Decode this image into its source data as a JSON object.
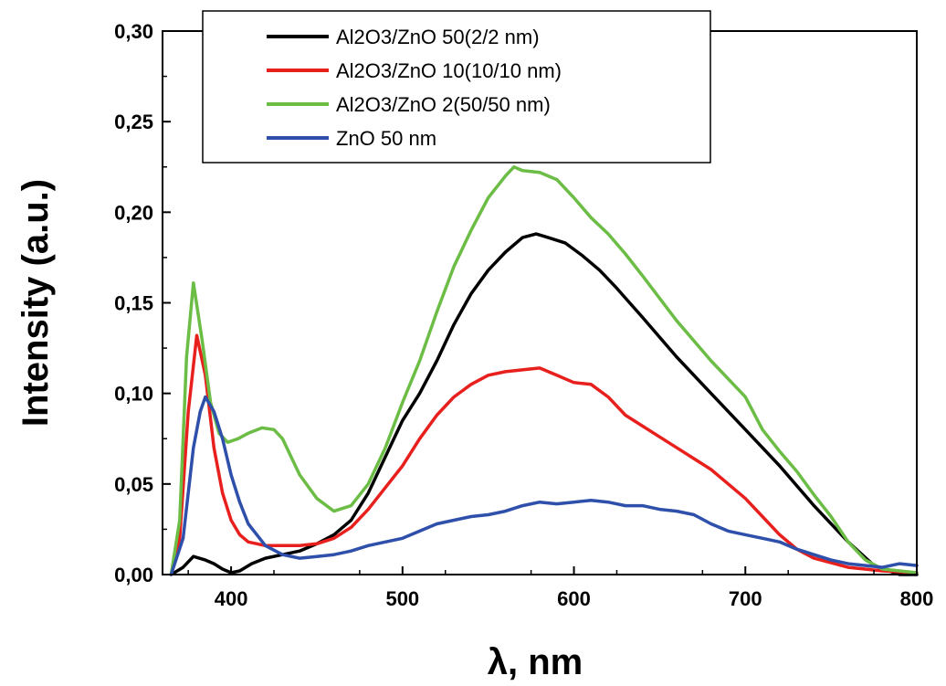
{
  "chart_data": {
    "type": "line",
    "title": "",
    "xlabel": "λ, nm",
    "ylabel": "Intensity (a.u.)",
    "xlim": [
      360,
      800
    ],
    "ylim": [
      0,
      0.3
    ],
    "x_ticks": [
      400,
      500,
      600,
      700,
      800
    ],
    "x_tick_labels": [
      "400",
      "500",
      "600",
      "700",
      "800"
    ],
    "y_ticks": [
      0,
      0.05,
      0.1,
      0.15,
      0.2,
      0.25,
      0.3
    ],
    "y_tick_labels": [
      "0,00",
      "0,05",
      "0,10",
      "0,15",
      "0,20",
      "0,25",
      "0,30"
    ],
    "grid": false,
    "legend_position": "top",
    "series": [
      {
        "name": "Al2O3/ZnO 50(2/2 nm)",
        "color": "#000000",
        "points": [
          [
            365,
            0.0
          ],
          [
            372,
            0.004
          ],
          [
            378,
            0.01
          ],
          [
            385,
            0.008
          ],
          [
            390,
            0.006
          ],
          [
            395,
            0.003
          ],
          [
            400,
            0.001
          ],
          [
            405,
            0.002
          ],
          [
            412,
            0.006
          ],
          [
            420,
            0.009
          ],
          [
            430,
            0.011
          ],
          [
            440,
            0.013
          ],
          [
            450,
            0.017
          ],
          [
            460,
            0.022
          ],
          [
            470,
            0.03
          ],
          [
            480,
            0.045
          ],
          [
            490,
            0.065
          ],
          [
            500,
            0.085
          ],
          [
            510,
            0.1
          ],
          [
            520,
            0.118
          ],
          [
            530,
            0.138
          ],
          [
            540,
            0.155
          ],
          [
            550,
            0.168
          ],
          [
            560,
            0.178
          ],
          [
            570,
            0.186
          ],
          [
            578,
            0.188
          ],
          [
            585,
            0.186
          ],
          [
            595,
            0.183
          ],
          [
            605,
            0.176
          ],
          [
            615,
            0.168
          ],
          [
            625,
            0.158
          ],
          [
            640,
            0.142
          ],
          [
            660,
            0.12
          ],
          [
            680,
            0.1
          ],
          [
            700,
            0.08
          ],
          [
            720,
            0.06
          ],
          [
            740,
            0.038
          ],
          [
            760,
            0.018
          ],
          [
            775,
            0.005
          ],
          [
            790,
            0.0
          ],
          [
            800,
            0.0
          ]
        ]
      },
      {
        "name": "Al2O3/ZnO 10(10/10 nm)",
        "color": "#e8201d",
        "points": [
          [
            365,
            0.0
          ],
          [
            370,
            0.02
          ],
          [
            375,
            0.09
          ],
          [
            380,
            0.132
          ],
          [
            385,
            0.11
          ],
          [
            390,
            0.07
          ],
          [
            395,
            0.045
          ],
          [
            400,
            0.03
          ],
          [
            405,
            0.022
          ],
          [
            410,
            0.018
          ],
          [
            420,
            0.016
          ],
          [
            430,
            0.016
          ],
          [
            440,
            0.016
          ],
          [
            450,
            0.017
          ],
          [
            460,
            0.02
          ],
          [
            470,
            0.026
          ],
          [
            480,
            0.036
          ],
          [
            490,
            0.048
          ],
          [
            500,
            0.06
          ],
          [
            510,
            0.075
          ],
          [
            520,
            0.088
          ],
          [
            530,
            0.098
          ],
          [
            540,
            0.105
          ],
          [
            550,
            0.11
          ],
          [
            560,
            0.112
          ],
          [
            570,
            0.113
          ],
          [
            580,
            0.114
          ],
          [
            590,
            0.11
          ],
          [
            600,
            0.106
          ],
          [
            610,
            0.105
          ],
          [
            620,
            0.098
          ],
          [
            630,
            0.088
          ],
          [
            640,
            0.082
          ],
          [
            650,
            0.076
          ],
          [
            660,
            0.07
          ],
          [
            670,
            0.064
          ],
          [
            680,
            0.058
          ],
          [
            690,
            0.05
          ],
          [
            700,
            0.042
          ],
          [
            710,
            0.032
          ],
          [
            720,
            0.022
          ],
          [
            730,
            0.014
          ],
          [
            740,
            0.009
          ],
          [
            760,
            0.004
          ],
          [
            780,
            0.002
          ],
          [
            800,
            0.001
          ]
        ]
      },
      {
        "name": "Al2O3/ZnO 2(50/50 nm)",
        "color": "#6cbd45",
        "points": [
          [
            365,
            0.0
          ],
          [
            370,
            0.03
          ],
          [
            374,
            0.12
          ],
          [
            378,
            0.161
          ],
          [
            383,
            0.13
          ],
          [
            388,
            0.095
          ],
          [
            393,
            0.078
          ],
          [
            398,
            0.073
          ],
          [
            404,
            0.075
          ],
          [
            410,
            0.078
          ],
          [
            418,
            0.081
          ],
          [
            425,
            0.08
          ],
          [
            430,
            0.075
          ],
          [
            435,
            0.065
          ],
          [
            440,
            0.055
          ],
          [
            450,
            0.042
          ],
          [
            460,
            0.035
          ],
          [
            470,
            0.038
          ],
          [
            480,
            0.05
          ],
          [
            490,
            0.07
          ],
          [
            500,
            0.095
          ],
          [
            510,
            0.118
          ],
          [
            520,
            0.145
          ],
          [
            530,
            0.17
          ],
          [
            540,
            0.19
          ],
          [
            550,
            0.208
          ],
          [
            560,
            0.22
          ],
          [
            565,
            0.225
          ],
          [
            570,
            0.223
          ],
          [
            580,
            0.222
          ],
          [
            590,
            0.218
          ],
          [
            600,
            0.208
          ],
          [
            610,
            0.197
          ],
          [
            620,
            0.188
          ],
          [
            630,
            0.177
          ],
          [
            640,
            0.165
          ],
          [
            660,
            0.14
          ],
          [
            680,
            0.118
          ],
          [
            700,
            0.098
          ],
          [
            710,
            0.08
          ],
          [
            720,
            0.068
          ],
          [
            730,
            0.057
          ],
          [
            740,
            0.044
          ],
          [
            750,
            0.032
          ],
          [
            760,
            0.018
          ],
          [
            770,
            0.008
          ],
          [
            780,
            0.003
          ],
          [
            800,
            0.001
          ]
        ]
      },
      {
        "name": "ZnO 50 nm",
        "color": "#2e4faa",
        "points": [
          [
            365,
            0.0
          ],
          [
            372,
            0.02
          ],
          [
            378,
            0.07
          ],
          [
            382,
            0.09
          ],
          [
            385,
            0.098
          ],
          [
            390,
            0.09
          ],
          [
            395,
            0.075
          ],
          [
            400,
            0.055
          ],
          [
            405,
            0.04
          ],
          [
            410,
            0.028
          ],
          [
            420,
            0.016
          ],
          [
            430,
            0.011
          ],
          [
            440,
            0.009
          ],
          [
            450,
            0.01
          ],
          [
            460,
            0.011
          ],
          [
            470,
            0.013
          ],
          [
            480,
            0.016
          ],
          [
            490,
            0.018
          ],
          [
            500,
            0.02
          ],
          [
            510,
            0.024
          ],
          [
            520,
            0.028
          ],
          [
            530,
            0.03
          ],
          [
            540,
            0.032
          ],
          [
            550,
            0.033
          ],
          [
            560,
            0.035
          ],
          [
            570,
            0.038
          ],
          [
            580,
            0.04
          ],
          [
            590,
            0.039
          ],
          [
            600,
            0.04
          ],
          [
            610,
            0.041
          ],
          [
            620,
            0.04
          ],
          [
            630,
            0.038
          ],
          [
            640,
            0.038
          ],
          [
            650,
            0.036
          ],
          [
            660,
            0.035
          ],
          [
            670,
            0.033
          ],
          [
            680,
            0.028
          ],
          [
            690,
            0.024
          ],
          [
            700,
            0.022
          ],
          [
            710,
            0.02
          ],
          [
            720,
            0.018
          ],
          [
            730,
            0.014
          ],
          [
            740,
            0.011
          ],
          [
            750,
            0.008
          ],
          [
            760,
            0.006
          ],
          [
            770,
            0.005
          ],
          [
            780,
            0.004
          ],
          [
            790,
            0.006
          ],
          [
            800,
            0.005
          ]
        ]
      }
    ]
  }
}
